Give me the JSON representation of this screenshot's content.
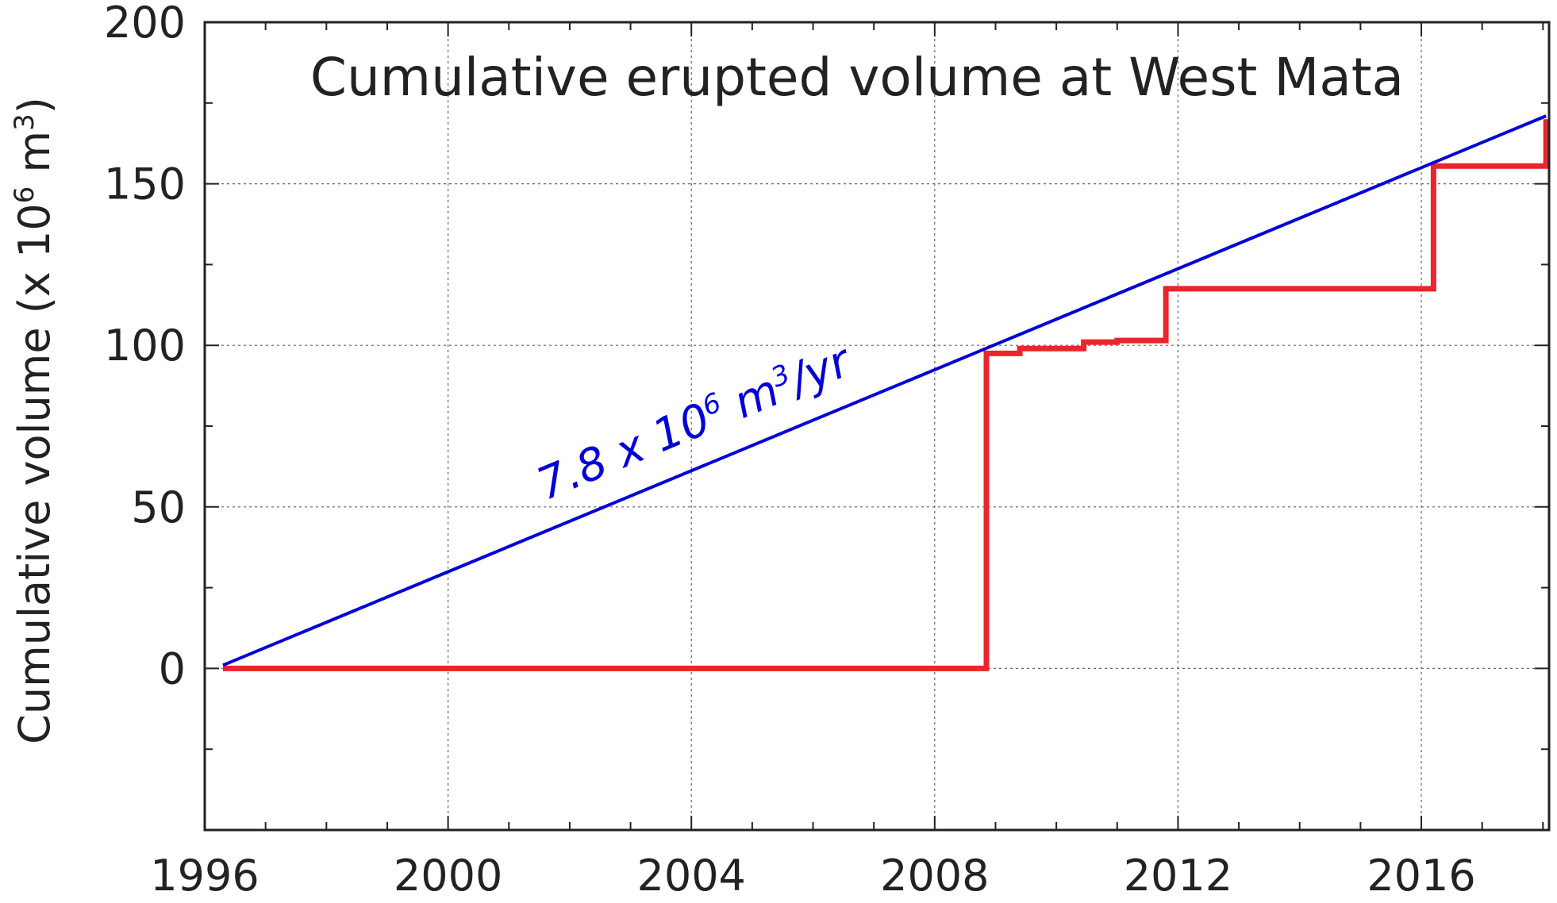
{
  "chart_data": {
    "type": "line",
    "title": "Cumulative erupted volume at West Mata",
    "xlabel": "",
    "ylabel": "Cumulative volume (x 10",
    "ylabel_sup1": "6",
    "ylabel_mid": " m",
    "ylabel_sup2": "3",
    "ylabel_end": ")",
    "xlim": [
      1996,
      2018.1
    ],
    "ylim": [
      -50,
      200
    ],
    "x_major_ticks": [
      1996,
      2000,
      2004,
      2008,
      2012,
      2016
    ],
    "x_tick_labels": [
      "1996",
      "2000",
      "2004",
      "2008",
      "2012",
      "2016"
    ],
    "x_minor_step": 1,
    "y_major_ticks": [
      0,
      50,
      100,
      150,
      200
    ],
    "y_tick_labels": [
      "0",
      "50",
      "100",
      "150",
      "200"
    ],
    "y_minor_step": 25,
    "x_grid": [
      2000,
      2004,
      2008,
      2012,
      2016
    ],
    "y_grid": [
      0,
      50,
      100,
      150
    ],
    "grid": true,
    "legend": false,
    "series": [
      {
        "style": "step",
        "color": "#e8262c",
        "points": [
          [
            1996.3,
            0
          ],
          [
            2008.85,
            0
          ],
          [
            2008.85,
            97.5
          ],
          [
            2009.4,
            97.5
          ],
          [
            2009.4,
            99
          ],
          [
            2010.45,
            99
          ],
          [
            2010.45,
            101
          ],
          [
            2011.0,
            101
          ],
          [
            2011.0,
            101.5
          ],
          [
            2011.8,
            101.5
          ],
          [
            2011.8,
            117.5
          ],
          [
            2016.2,
            117.5
          ],
          [
            2016.2,
            155.5
          ],
          [
            2018.05,
            155.5
          ],
          [
            2018.05,
            170
          ]
        ]
      },
      {
        "style": "line",
        "color": "#0000d8",
        "points": [
          [
            1996.3,
            1
          ],
          [
            2018.05,
            171
          ]
        ]
      }
    ],
    "annotation": {
      "text_pre": "7.8 x 10",
      "sup1": "6",
      "text_mid": " m",
      "sup2": "3",
      "text_post": "/yr",
      "color": "#0000d8",
      "anchor_x": 2001.6,
      "anchor_y": 52
    }
  }
}
